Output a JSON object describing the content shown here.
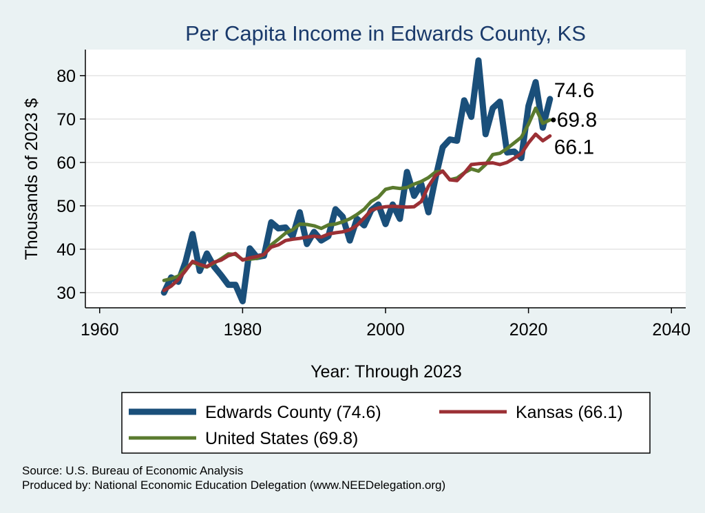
{
  "chart_data": {
    "type": "line",
    "title": "Per Capita Income in Edwards County, KS",
    "xlabel": "Year: Through 2023",
    "ylabel": "Thousands of 2023 $",
    "xlim": [
      1958,
      2042
    ],
    "ylim": [
      26.5,
      86
    ],
    "xticks": [
      1960,
      1980,
      2000,
      2020,
      2040
    ],
    "yticks": [
      30,
      40,
      50,
      60,
      70,
      80
    ],
    "grid": true,
    "x": [
      1969,
      1970,
      1971,
      1972,
      1973,
      1974,
      1975,
      1976,
      1977,
      1978,
      1979,
      1980,
      1981,
      1982,
      1983,
      1984,
      1985,
      1986,
      1987,
      1988,
      1989,
      1990,
      1991,
      1992,
      1993,
      1994,
      1995,
      1996,
      1997,
      1998,
      1999,
      2000,
      2001,
      2002,
      2003,
      2004,
      2005,
      2006,
      2007,
      2008,
      2009,
      2010,
      2011,
      2012,
      2013,
      2014,
      2015,
      2016,
      2017,
      2018,
      2019,
      2020,
      2021,
      2022,
      2023
    ],
    "series": [
      {
        "name": "Edwards County",
        "legend": "Edwards County (74.6)",
        "color": "#1a4f7a",
        "width": 9,
        "values": [
          30.0,
          33.5,
          32.5,
          37.0,
          43.5,
          35.0,
          39.0,
          36.0,
          34.0,
          31.8,
          31.8,
          28.0,
          40.2,
          38.2,
          38.5,
          46.2,
          44.8,
          45.0,
          43.0,
          48.5,
          41.2,
          44.0,
          42.0,
          43.0,
          49.2,
          47.5,
          42.0,
          47.0,
          45.5,
          49.0,
          50.3,
          45.8,
          50.3,
          47.0,
          57.8,
          52.3,
          55.0,
          48.5,
          56.5,
          63.5,
          65.3,
          65.0,
          74.3,
          70.5,
          83.5,
          66.5,
          72.5,
          74.0,
          62.3,
          62.5,
          61.0,
          73.0,
          78.5,
          68.0,
          74.6
        ],
        "end_label": "74.6"
      },
      {
        "name": "Kansas",
        "legend": "Kansas (66.1)",
        "color": "#9b3035",
        "width": 5,
        "values": [
          30.5,
          31.5,
          33.0,
          35.0,
          37.2,
          36.5,
          36.0,
          37.0,
          37.5,
          38.5,
          39.0,
          37.5,
          38.0,
          38.3,
          38.8,
          40.5,
          41.0,
          42.0,
          42.3,
          42.5,
          42.8,
          43.0,
          42.8,
          43.5,
          43.8,
          44.0,
          44.5,
          45.5,
          47.2,
          49.0,
          49.5,
          49.8,
          49.9,
          49.8,
          49.7,
          49.8,
          51.0,
          54.5,
          57.0,
          58.0,
          56.0,
          55.8,
          57.5,
          59.5,
          59.7,
          59.8,
          59.9,
          59.5,
          60.0,
          61.0,
          62.0,
          64.5,
          66.5,
          65.0,
          66.1
        ],
        "end_label": "66.1"
      },
      {
        "name": "United States",
        "legend": "United States (69.8)",
        "color": "#5a7a2e",
        "width": 5,
        "values": [
          32.8,
          33.2,
          33.8,
          35.5,
          37.0,
          36.3,
          35.9,
          36.8,
          37.8,
          38.9,
          38.8,
          37.6,
          37.7,
          37.9,
          38.8,
          41.0,
          42.3,
          43.7,
          44.5,
          45.8,
          45.7,
          45.4,
          44.8,
          45.6,
          45.8,
          46.3,
          47.0,
          48.0,
          49.2,
          51.0,
          52.0,
          53.8,
          54.2,
          54.0,
          54.2,
          55.0,
          55.6,
          56.5,
          57.8,
          58.0,
          56.0,
          56.4,
          57.6,
          58.5,
          58.0,
          59.5,
          61.8,
          62.1,
          63.2,
          64.5,
          65.8,
          68.8,
          72.5,
          69.0,
          69.8
        ],
        "end_label": "69.8"
      }
    ]
  },
  "source_text": "Source: U.S. Bureau of Economic Analysis",
  "producer_text": "Produced by: National Economic Education Delegation (www.NEEDelegation.org)"
}
